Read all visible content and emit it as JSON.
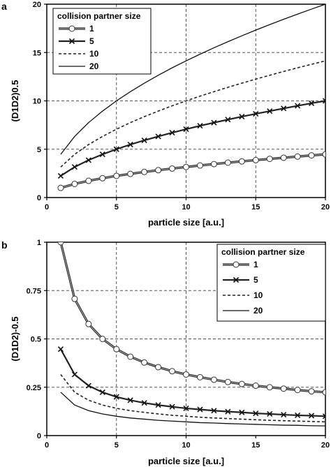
{
  "chart_data": [
    {
      "panel": "a",
      "type": "line",
      "xlabel": "particle size [a.u.]",
      "ylabel": "(D1D2)0.5",
      "xlim": [
        0,
        20
      ],
      "ylim": [
        0,
        20
      ],
      "xticks": [
        0,
        5,
        10,
        15,
        20
      ],
      "yticks": [
        0,
        5,
        10,
        15,
        20
      ],
      "grid": "dashed at x=5,10,15 and y=5,10,15",
      "legend": {
        "title": "collision partner size",
        "placement": "top-left"
      },
      "x": [
        1,
        2,
        3,
        4,
        5,
        6,
        7,
        8,
        9,
        10,
        11,
        12,
        13,
        14,
        15,
        16,
        17,
        18,
        19,
        20
      ],
      "series": [
        {
          "name": "1",
          "marker": "circle",
          "values": [
            1.0,
            1.41,
            1.73,
            2.0,
            2.24,
            2.45,
            2.65,
            2.83,
            3.0,
            3.16,
            3.32,
            3.46,
            3.61,
            3.74,
            3.87,
            4.0,
            4.12,
            4.24,
            4.36,
            4.47
          ]
        },
        {
          "name": "5",
          "marker": "x",
          "values": [
            2.24,
            3.16,
            3.87,
            4.47,
            5.0,
            5.48,
            5.92,
            6.32,
            6.71,
            7.07,
            7.42,
            7.75,
            8.06,
            8.37,
            8.66,
            8.94,
            9.22,
            9.49,
            9.75,
            10.0
          ]
        },
        {
          "name": "10",
          "marker": "none",
          "values": [
            3.16,
            4.47,
            5.48,
            6.32,
            7.07,
            7.75,
            8.37,
            8.94,
            9.49,
            10.0,
            10.49,
            10.95,
            11.4,
            11.83,
            12.25,
            12.65,
            13.04,
            13.42,
            13.78,
            14.14
          ]
        },
        {
          "name": "20",
          "marker": "none",
          "values": [
            4.47,
            6.32,
            7.75,
            8.94,
            10.0,
            10.95,
            11.83,
            12.65,
            13.42,
            14.14,
            14.83,
            15.49,
            16.12,
            16.73,
            17.32,
            17.89,
            18.44,
            18.97,
            19.49,
            20.0
          ]
        }
      ]
    },
    {
      "panel": "b",
      "type": "line",
      "xlabel": "particle size [a.u.]",
      "ylabel": "(D1D2)-0.5",
      "xlim": [
        0,
        20
      ],
      "ylim": [
        0,
        1
      ],
      "xticks": [
        0,
        5,
        10,
        15,
        20
      ],
      "yticks": [
        0,
        0.25,
        0.5,
        0.75,
        1
      ],
      "ytick_labels": [
        "0",
        "0.25",
        "0.5",
        "0.75",
        "1"
      ],
      "grid": "dashed at x=5,10 and y=0.25,0.5,0.75",
      "legend": {
        "title": "collision partner size",
        "placement": "top-right"
      },
      "x": [
        1,
        2,
        3,
        4,
        5,
        6,
        7,
        8,
        9,
        10,
        11,
        12,
        13,
        14,
        15,
        16,
        17,
        18,
        19,
        20
      ],
      "series": [
        {
          "name": "1",
          "marker": "circle",
          "values": [
            1.0,
            0.707,
            0.577,
            0.5,
            0.447,
            0.408,
            0.378,
            0.354,
            0.333,
            0.316,
            0.302,
            0.289,
            0.277,
            0.267,
            0.258,
            0.25,
            0.243,
            0.236,
            0.229,
            0.224
          ]
        },
        {
          "name": "5",
          "marker": "x",
          "values": [
            0.447,
            0.316,
            0.258,
            0.224,
            0.2,
            0.183,
            0.169,
            0.158,
            0.149,
            0.141,
            0.135,
            0.129,
            0.124,
            0.12,
            0.115,
            0.112,
            0.108,
            0.105,
            0.103,
            0.1
          ]
        },
        {
          "name": "10",
          "marker": "none",
          "values": [
            0.316,
            0.224,
            0.183,
            0.158,
            0.141,
            0.129,
            0.12,
            0.112,
            0.105,
            0.1,
            0.095,
            0.091,
            0.088,
            0.085,
            0.082,
            0.079,
            0.077,
            0.075,
            0.073,
            0.071
          ]
        },
        {
          "name": "20",
          "marker": "none",
          "values": [
            0.224,
            0.158,
            0.129,
            0.112,
            0.1,
            0.091,
            0.085,
            0.079,
            0.075,
            0.071,
            0.067,
            0.065,
            0.062,
            0.06,
            0.058,
            0.056,
            0.054,
            0.053,
            0.051,
            0.05
          ]
        }
      ]
    }
  ]
}
